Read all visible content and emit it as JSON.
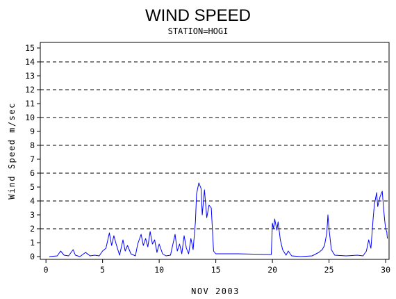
{
  "chart_data": {
    "type": "line",
    "title": "WIND SPEED",
    "subtitle": "STATION=HOGI",
    "xlabel": "NOV 2003",
    "ylabel": "Wind Speed m/sec",
    "xlim": [
      -0.5,
      30.3
    ],
    "ylim": [
      -0.2,
      15.4
    ],
    "x_ticks": [
      0,
      5,
      10,
      15,
      20,
      25,
      30
    ],
    "x_tick_labels": [
      "0",
      "5",
      "10",
      "15",
      "20",
      "25",
      "30"
    ],
    "y_ticks": [
      0,
      1,
      2,
      3,
      4,
      5,
      6,
      7,
      8,
      9,
      10,
      11,
      12,
      13,
      14,
      15
    ],
    "y_tick_labels": [
      "0",
      "1",
      "2",
      "3",
      "4",
      "5",
      "6",
      "7",
      "8",
      "9",
      "10",
      "11",
      "12",
      "13",
      "14",
      "15"
    ],
    "grid": {
      "horizontal_dashed_at": [
        2,
        4,
        6,
        8,
        10,
        12,
        14
      ]
    },
    "line_color": "#0000ff",
    "series": [
      {
        "points": [
          [
            0.3,
            0.0
          ],
          [
            1.0,
            0.05
          ],
          [
            1.3,
            0.4
          ],
          [
            1.6,
            0.1
          ],
          [
            2.0,
            0.05
          ],
          [
            2.4,
            0.5
          ],
          [
            2.6,
            0.1
          ],
          [
            3.0,
            0.0
          ],
          [
            3.5,
            0.3
          ],
          [
            3.9,
            0.05
          ],
          [
            4.3,
            0.1
          ],
          [
            4.7,
            0.05
          ],
          [
            5.0,
            0.4
          ],
          [
            5.3,
            0.6
          ],
          [
            5.6,
            1.7
          ],
          [
            5.8,
            0.8
          ],
          [
            6.0,
            1.5
          ],
          [
            6.2,
            0.9
          ],
          [
            6.5,
            0.1
          ],
          [
            6.8,
            1.2
          ],
          [
            7.0,
            0.4
          ],
          [
            7.2,
            0.8
          ],
          [
            7.5,
            0.2
          ],
          [
            7.9,
            0.05
          ],
          [
            8.1,
            0.9
          ],
          [
            8.4,
            1.6
          ],
          [
            8.6,
            0.8
          ],
          [
            8.8,
            1.3
          ],
          [
            9.0,
            0.7
          ],
          [
            9.2,
            1.8
          ],
          [
            9.4,
            0.9
          ],
          [
            9.6,
            1.2
          ],
          [
            9.8,
            0.3
          ],
          [
            10.0,
            0.9
          ],
          [
            10.3,
            0.2
          ],
          [
            10.6,
            0.05
          ],
          [
            11.0,
            0.1
          ],
          [
            11.4,
            1.6
          ],
          [
            11.6,
            0.4
          ],
          [
            11.8,
            0.9
          ],
          [
            12.0,
            0.2
          ],
          [
            12.2,
            1.5
          ],
          [
            12.4,
            0.6
          ],
          [
            12.6,
            0.2
          ],
          [
            12.8,
            1.3
          ],
          [
            13.0,
            0.5
          ],
          [
            13.2,
            2.5
          ],
          [
            13.3,
            4.5
          ],
          [
            13.5,
            5.3
          ],
          [
            13.7,
            4.9
          ],
          [
            13.8,
            3.0
          ],
          [
            14.0,
            4.8
          ],
          [
            14.2,
            2.8
          ],
          [
            14.4,
            3.7
          ],
          [
            14.6,
            3.5
          ],
          [
            14.8,
            0.4
          ],
          [
            15.0,
            0.2
          ],
          [
            17.0,
            0.2
          ],
          [
            19.9,
            0.15
          ],
          [
            20.0,
            2.4
          ],
          [
            20.1,
            2.0
          ],
          [
            20.2,
            2.7
          ],
          [
            20.4,
            1.9
          ],
          [
            20.5,
            2.5
          ],
          [
            20.7,
            1.2
          ],
          [
            20.9,
            0.5
          ],
          [
            21.2,
            0.1
          ],
          [
            21.4,
            0.4
          ],
          [
            21.7,
            0.05
          ],
          [
            22.5,
            0.0
          ],
          [
            23.5,
            0.05
          ],
          [
            24.1,
            0.3
          ],
          [
            24.4,
            0.5
          ],
          [
            24.6,
            0.8
          ],
          [
            24.8,
            1.7
          ],
          [
            24.9,
            3.0
          ],
          [
            25.0,
            2.0
          ],
          [
            25.2,
            0.5
          ],
          [
            25.5,
            0.1
          ],
          [
            26.5,
            0.05
          ],
          [
            27.5,
            0.1
          ],
          [
            28.0,
            0.05
          ],
          [
            28.3,
            0.4
          ],
          [
            28.5,
            1.2
          ],
          [
            28.7,
            0.6
          ],
          [
            28.9,
            2.8
          ],
          [
            29.0,
            3.7
          ],
          [
            29.2,
            4.6
          ],
          [
            29.3,
            3.6
          ],
          [
            29.5,
            4.3
          ],
          [
            29.7,
            4.7
          ],
          [
            29.8,
            3.6
          ],
          [
            29.9,
            2.7
          ],
          [
            30.0,
            2.0
          ],
          [
            30.1,
            1.8
          ],
          [
            30.15,
            1.3
          ]
        ]
      }
    ]
  }
}
